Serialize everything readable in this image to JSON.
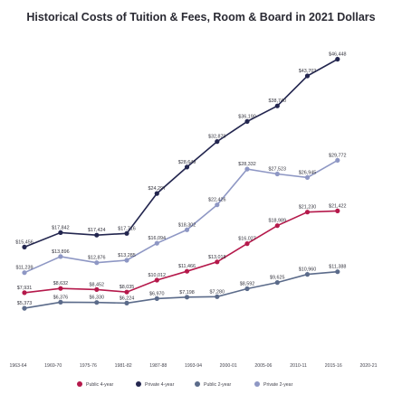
{
  "chart_data": {
    "type": "line",
    "title": "Historical Costs of Tuition & Fees, Room & Board in 2021 Dollars",
    "xlabel": "",
    "ylabel": "",
    "categories": [
      "1963-64",
      "1969-70",
      "1975-76",
      "1981-82",
      "1987-88",
      "1993-94",
      "2000-01",
      "2005-06",
      "2010-11",
      "2015-16",
      "2020-21"
    ],
    "x": [
      1963,
      1964,
      1965,
      1966,
      1967,
      1968,
      1969,
      1970,
      1971,
      1972,
      1973,
      1974,
      1975,
      1976,
      1977,
      1978,
      1979,
      1980,
      1981,
      1982,
      1983,
      1984,
      1985,
      1986,
      1987,
      1988,
      1989,
      1990,
      1991,
      1992,
      1993,
      1994,
      1995,
      1996,
      1997,
      1998,
      1999,
      2000,
      2001,
      2002,
      2003,
      2004,
      2005,
      2006,
      2007,
      2008,
      2009,
      2010,
      2011,
      2012,
      2013,
      2014,
      2015,
      2016,
      2017,
      2018,
      2019,
      2020
    ],
    "ylim": [
      3000,
      51000
    ],
    "grid": false,
    "legend_position": "bottom",
    "series": [
      {
        "name": "Public 4-year",
        "color": "#b5194b",
        "points": [
          [
            1963,
            7931
          ],
          [
            1969,
            8632
          ],
          [
            1975,
            8452
          ],
          [
            1980,
            8035
          ],
          [
            1985,
            10012
          ],
          [
            1990,
            11466
          ],
          [
            1995,
            13018
          ],
          [
            2000,
            16027
          ],
          [
            2005,
            18989
          ],
          [
            2010,
            21230
          ],
          [
            2015,
            21422
          ]
        ],
        "labels": [
          {
            "x": 1963,
            "text": "$7,931"
          },
          {
            "x": 1969,
            "text": "$8,632"
          },
          {
            "x": 1975,
            "text": "$8,452"
          },
          {
            "x": 1980,
            "text": "$8,035"
          },
          {
            "x": 1985,
            "text": "$10,012"
          },
          {
            "x": 1990,
            "text": "$11,466"
          },
          {
            "x": 1995,
            "text": "$13,018"
          },
          {
            "x": 2000,
            "text": "$16,027"
          },
          {
            "x": 2005,
            "text": "$18,989"
          },
          {
            "x": 2010,
            "text": "$21,230"
          },
          {
            "x": 2015,
            "text": "$21,422"
          }
        ]
      },
      {
        "name": "Private 4-year",
        "color": "#23264f",
        "points": [
          [
            1963,
            15456
          ],
          [
            1969,
            17842
          ],
          [
            1975,
            17424
          ],
          [
            1980,
            17716
          ],
          [
            1985,
            24297
          ],
          [
            1990,
            28649
          ],
          [
            1995,
            32879
          ],
          [
            2000,
            36190
          ],
          [
            2005,
            38740
          ],
          [
            2010,
            43702
          ],
          [
            2015,
            46448
          ]
        ],
        "labels": [
          {
            "x": 1963,
            "text": "$15,456"
          },
          {
            "x": 1969,
            "text": "$17,842"
          },
          {
            "x": 1975,
            "text": "$17,424"
          },
          {
            "x": 1980,
            "text": "$17,716"
          },
          {
            "x": 1985,
            "text": "$24,297"
          },
          {
            "x": 1990,
            "text": "$28,649"
          },
          {
            "x": 1995,
            "text": "$32,879"
          },
          {
            "x": 2000,
            "text": "$36,190"
          },
          {
            "x": 2005,
            "text": "$38,740"
          },
          {
            "x": 2010,
            "text": "$43,702"
          },
          {
            "x": 2015,
            "text": "$46,448"
          }
        ]
      },
      {
        "name": "Public 2-year",
        "color": "#5b6b8a",
        "points": [
          [
            1963,
            5373
          ],
          [
            1969,
            6376
          ],
          [
            1975,
            6330
          ],
          [
            1980,
            6224
          ],
          [
            1985,
            6970
          ],
          [
            1990,
            7198
          ],
          [
            1995,
            7280
          ],
          [
            2000,
            8592
          ],
          [
            2005,
            9625
          ],
          [
            2010,
            10960
          ],
          [
            2015,
            11388
          ]
        ],
        "labels": [
          {
            "x": 1963,
            "text": "$5,373"
          },
          {
            "x": 1969,
            "text": "$6,376"
          },
          {
            "x": 1975,
            "text": "$6,330"
          },
          {
            "x": 1980,
            "text": "$6,224"
          },
          {
            "x": 1985,
            "text": "$6,970"
          },
          {
            "x": 1990,
            "text": "$7,198"
          },
          {
            "x": 1995,
            "text": "$7,280"
          },
          {
            "x": 2000,
            "text": "$8,592"
          },
          {
            "x": 2005,
            "text": "$9,625"
          },
          {
            "x": 2010,
            "text": "$10,960"
          },
          {
            "x": 2015,
            "text": "$11,388"
          }
        ]
      },
      {
        "name": "Private 2-year",
        "color": "#8e97c4",
        "points": [
          [
            1963,
            11239
          ],
          [
            1969,
            13896
          ],
          [
            1975,
            12876
          ],
          [
            1980,
            13285
          ],
          [
            1985,
            16094
          ],
          [
            1990,
            18302
          ],
          [
            1995,
            22426
          ],
          [
            2000,
            28332
          ],
          [
            2005,
            27523
          ],
          [
            2010,
            26945
          ],
          [
            2015,
            29772
          ]
        ],
        "labels": [
          {
            "x": 1963,
            "text": "$11,239"
          },
          {
            "x": 1969,
            "text": "$13,896"
          },
          {
            "x": 1975,
            "text": "$12,876"
          },
          {
            "x": 1980,
            "text": "$13,285"
          },
          {
            "x": 1985,
            "text": "$16,094"
          },
          {
            "x": 1990,
            "text": "$18,302"
          },
          {
            "x": 1995,
            "text": "$22,426"
          },
          {
            "x": 2000,
            "text": "$28,332"
          },
          {
            "x": 2005,
            "text": "$27,523"
          },
          {
            "x": 2010,
            "text": "$26,945"
          },
          {
            "x": 2015,
            "text": "$29,772"
          }
        ]
      }
    ]
  }
}
